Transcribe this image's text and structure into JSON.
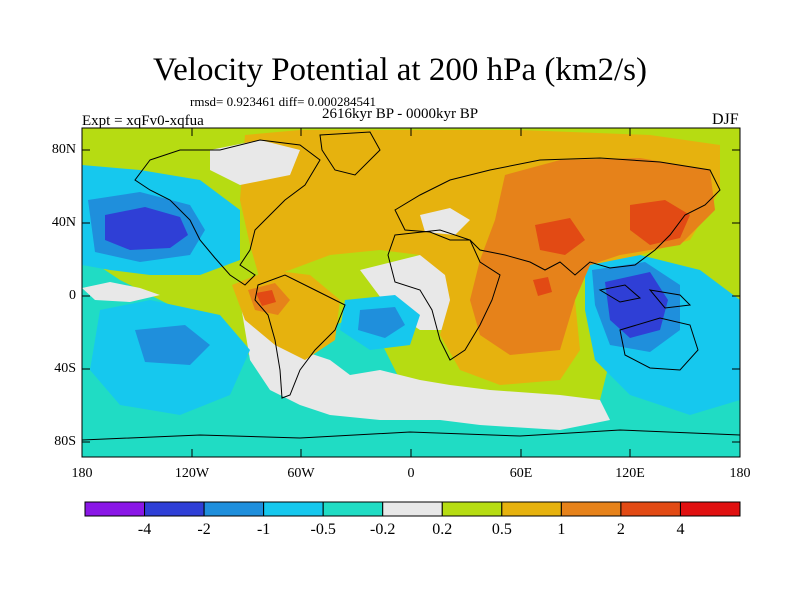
{
  "title": "Velocity Potential at 200 hPa (km2/s)",
  "stats": "rmsd= 0.923461 diff= 0.000284541",
  "experiment": "Expt = xqFv0-xqfua",
  "period": "2616kyr BP - 0000kyr BP",
  "season": "DJF",
  "lat_labels": [
    "80N",
    "40N",
    "0",
    "40S",
    "80S"
  ],
  "lon_labels": [
    "180",
    "120W",
    "60W",
    "0",
    "60E",
    "120E",
    "180"
  ],
  "colorbar": {
    "labels": [
      "-4",
      "-2",
      "-1",
      "-0.5",
      "-0.2",
      "0.2",
      "0.5",
      "1",
      "2",
      "4"
    ],
    "colors": [
      "#8a17e6",
      "#2f3fd6",
      "#1f8fdc",
      "#16c8ee",
      "#20dcc4",
      "#e8e8e8",
      "#b6dc12",
      "#e6b20e",
      "#e6821a",
      "#e24a14",
      "#e01010"
    ]
  },
  "map_data": {
    "type": "filled-contour",
    "projection": "cylindrical equidistant",
    "lon_range": [
      -180,
      180
    ],
    "lat_range": [
      -90,
      90
    ],
    "field": "velocity potential anomaly, 200 hPa",
    "features": [
      {
        "name": "strong positive center",
        "lon": 75,
        "lat": 25,
        "level": "1 to 2"
      },
      {
        "name": "strong positive center",
        "lon": 128,
        "lat": 32,
        "level": "2 to 4"
      },
      {
        "name": "positive center",
        "lon": -68,
        "lat": -5,
        "level": "1 to 2"
      },
      {
        "name": "negative center",
        "lon": 118,
        "lat": -10,
        "level": "-4 to -2"
      },
      {
        "name": "negative center",
        "lon": -155,
        "lat": 35,
        "level": "-4 to -2"
      },
      {
        "name": "negative center",
        "lon": -150,
        "lat": -30,
        "level": "-1 to -0.5"
      },
      {
        "name": "negative center",
        "lon": -10,
        "lat": -10,
        "level": "-1 to -0.5"
      }
    ]
  }
}
